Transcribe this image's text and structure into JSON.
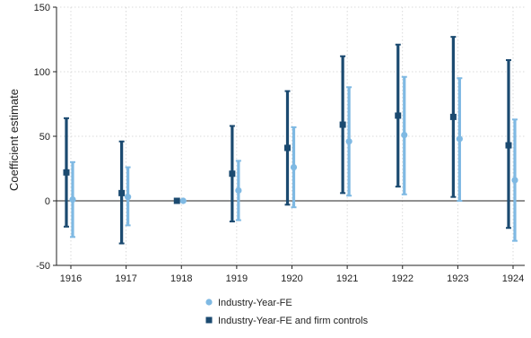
{
  "colors": {
    "light": "#7fb9e3",
    "dark": "#1b4a70",
    "grid": "#d0d0d0",
    "axis": "#222222"
  },
  "chart_data": {
    "type": "scatter",
    "title": "",
    "xlabel": "",
    "ylabel": "Coefficient estimate",
    "ylim": [
      -50,
      150
    ],
    "yticks": [
      -50,
      0,
      50,
      100,
      150
    ],
    "x": [
      "1916",
      "1917",
      "1918",
      "1919",
      "1920",
      "1921",
      "1922",
      "1923",
      "1924"
    ],
    "grid": true,
    "legend_position": "bottom",
    "series": [
      {
        "name": "Industry-Year-FE and firm controls",
        "marker": "square",
        "color": "#1b4a70",
        "points": [
          {
            "x": "1916",
            "y": 22,
            "lo": -20,
            "hi": 64
          },
          {
            "x": "1917",
            "y": 6,
            "lo": -33,
            "hi": 46
          },
          {
            "x": "1918",
            "y": 0,
            "lo": 0,
            "hi": 0
          },
          {
            "x": "1919",
            "y": 21,
            "lo": -16,
            "hi": 58
          },
          {
            "x": "1920",
            "y": 41,
            "lo": -3,
            "hi": 85
          },
          {
            "x": "1921",
            "y": 59,
            "lo": 6,
            "hi": 112
          },
          {
            "x": "1922",
            "y": 66,
            "lo": 11,
            "hi": 121
          },
          {
            "x": "1923",
            "y": 65,
            "lo": 3,
            "hi": 127
          },
          {
            "x": "1924",
            "y": 43,
            "lo": -21,
            "hi": 109
          }
        ]
      },
      {
        "name": "Industry-Year-FE",
        "marker": "circle",
        "color": "#7fb9e3",
        "points": [
          {
            "x": "1916",
            "y": 1,
            "lo": -28,
            "hi": 30
          },
          {
            "x": "1917",
            "y": 3,
            "lo": -19,
            "hi": 26
          },
          {
            "x": "1918",
            "y": 0,
            "lo": 0,
            "hi": 0
          },
          {
            "x": "1919",
            "y": 8,
            "lo": -15,
            "hi": 31
          },
          {
            "x": "1920",
            "y": 26,
            "lo": -5,
            "hi": 57
          },
          {
            "x": "1921",
            "y": 46,
            "lo": 4,
            "hi": 88
          },
          {
            "x": "1922",
            "y": 51,
            "lo": 5,
            "hi": 96
          },
          {
            "x": "1923",
            "y": 48,
            "lo": 0,
            "hi": 95
          },
          {
            "x": "1924",
            "y": 16,
            "lo": -31,
            "hi": 63
          }
        ]
      }
    ],
    "legend": [
      {
        "label": "Industry-Year-FE",
        "marker": "circle"
      },
      {
        "label": "Industry-Year-FE and firm controls",
        "marker": "square"
      }
    ]
  }
}
